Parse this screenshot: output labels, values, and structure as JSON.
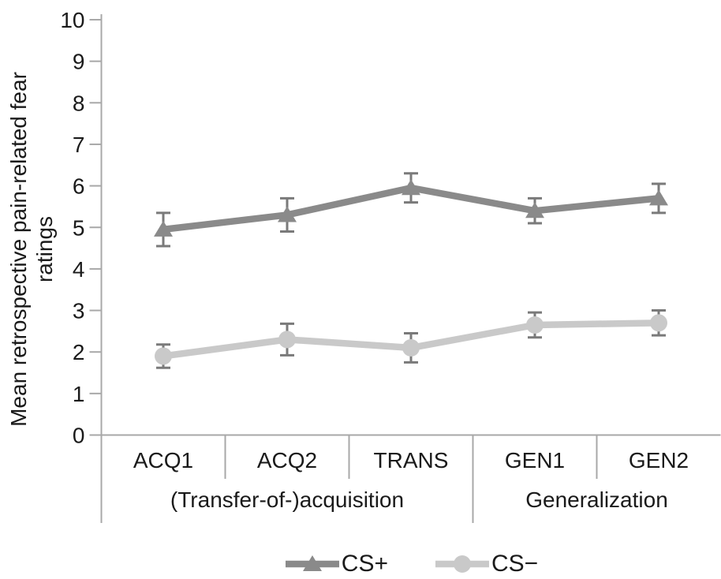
{
  "chart_data": {
    "type": "line",
    "title": "",
    "xlabel": "",
    "ylabel_lines": [
      "Mean retrospective pain-related fear",
      "ratings"
    ],
    "categories": [
      "ACQ1",
      "ACQ2",
      "TRANS",
      "GEN1",
      "GEN2"
    ],
    "groups": [
      {
        "label": "(Transfer-of-)acquisition",
        "span": [
          0,
          2
        ]
      },
      {
        "label": "Generalization",
        "span": [
          3,
          4
        ]
      }
    ],
    "ylim": [
      0,
      10
    ],
    "ytick_step": 1,
    "grid": false,
    "legend_position": "bottom",
    "series": [
      {
        "name": "CS+",
        "marker": "triangle",
        "color": "#8a8a8a",
        "values": [
          4.95,
          5.3,
          5.95,
          5.4,
          5.7
        ],
        "errors": [
          0.4,
          0.4,
          0.35,
          0.3,
          0.35
        ]
      },
      {
        "name": "CS−",
        "marker": "circle",
        "color": "#c9c9c9",
        "values": [
          1.9,
          2.3,
          2.1,
          2.65,
          2.7
        ],
        "errors": [
          0.28,
          0.38,
          0.35,
          0.3,
          0.3
        ]
      }
    ],
    "colors": {
      "error_bar": "#7a7a7a",
      "axis": "#a8a8a8",
      "text": "#1a1a1a"
    }
  }
}
